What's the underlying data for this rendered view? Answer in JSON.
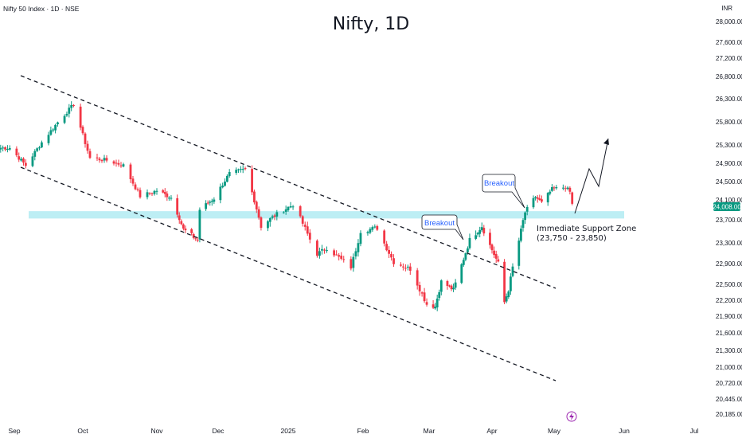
{
  "header": {
    "symbol_line": "Nifty 50 Index · 1D · NSE",
    "currency": "INR"
  },
  "chart_data": {
    "type": "candlestick",
    "title": "Nifty, 1D",
    "y_ticks": [
      28000,
      27600,
      27200,
      26800,
      26300,
      25800,
      25300,
      24900,
      24500,
      24100,
      23700,
      23300,
      22900,
      22500,
      22200,
      21900,
      21600,
      21300,
      21000,
      20720,
      20445,
      20185
    ],
    "y_tick_labels": [
      "28,000.00",
      "27,600.00",
      "27,200.00",
      "26,800.00",
      "26,300.00",
      "25,800.00",
      "25,300.00",
      "24,900.00",
      "24,500.00",
      "24,100.00",
      "23,700.00",
      "23,300.00",
      "22,900.00",
      "22,500.00",
      "22,200.00",
      "21,900.00",
      "21,600.00",
      "21,300.00",
      "21,000.00",
      "20,720.00",
      "20,445.00",
      "20,185.00"
    ],
    "x_labels": [
      "Sep",
      "Oct",
      "Nov",
      "Dec",
      "2025",
      "Feb",
      "Mar",
      "Apr",
      "May",
      "Jun",
      "Jul"
    ],
    "last_price_label": "24,008.00",
    "last_price": 24008,
    "support_zone": {
      "low": 23750,
      "high": 23850,
      "label_line1": "Immediate Support Zone",
      "label_line2": "(23,750 - 23,850)"
    },
    "annotations": [
      "Breakout",
      "Breakout"
    ],
    "anchors": [
      {
        "d": "2024-08-30",
        "c": 25236
      },
      {
        "d": "2024-09-06",
        "c": 24852
      },
      {
        "d": "2024-09-13",
        "c": 25356
      },
      {
        "d": "2024-09-20",
        "c": 25790
      },
      {
        "d": "2024-09-27",
        "c": 26178
      },
      {
        "d": "2024-10-04",
        "c": 25014
      },
      {
        "d": "2024-10-11",
        "c": 24964
      },
      {
        "d": "2024-10-18",
        "c": 24854
      },
      {
        "d": "2024-10-25",
        "c": 24180
      },
      {
        "d": "2024-11-01",
        "c": 24304
      },
      {
        "d": "2024-11-08",
        "c": 24148
      },
      {
        "d": "2024-11-14",
        "c": 23532
      },
      {
        "d": "2024-11-21",
        "c": 23349
      },
      {
        "d": "2024-11-22",
        "c": 23907
      },
      {
        "d": "2024-11-29",
        "c": 24131
      },
      {
        "d": "2024-12-06",
        "c": 24677
      },
      {
        "d": "2024-12-13",
        "c": 24768
      },
      {
        "d": "2024-12-20",
        "c": 23587
      },
      {
        "d": "2024-12-27",
        "c": 23813
      },
      {
        "d": "2025-01-03",
        "c": 24004
      },
      {
        "d": "2025-01-13",
        "c": 23085
      },
      {
        "d": "2025-01-17",
        "c": 23203
      },
      {
        "d": "2025-01-27",
        "c": 22829
      },
      {
        "d": "2025-01-31",
        "c": 23508
      },
      {
        "d": "2025-02-07",
        "c": 23559
      },
      {
        "d": "2025-02-14",
        "c": 22929
      },
      {
        "d": "2025-02-21",
        "c": 22795
      },
      {
        "d": "2025-02-28",
        "c": 22124
      },
      {
        "d": "2025-03-04",
        "c": 22082
      },
      {
        "d": "2025-03-07",
        "c": 22552
      },
      {
        "d": "2025-03-13",
        "c": 22397
      },
      {
        "d": "2025-03-21",
        "c": 23350
      },
      {
        "d": "2025-03-27",
        "c": 23591
      },
      {
        "d": "2025-04-01",
        "c": 23165
      },
      {
        "d": "2025-04-04",
        "c": 22904
      },
      {
        "d": "2025-04-07",
        "c": 22161
      },
      {
        "d": "2025-04-09",
        "c": 22399
      },
      {
        "d": "2025-04-11",
        "c": 22828
      },
      {
        "d": "2025-04-17",
        "c": 23851
      },
      {
        "d": "2025-04-22",
        "c": 24167
      },
      {
        "d": "2025-04-25",
        "c": 24039
      },
      {
        "d": "2025-04-30",
        "c": 24334
      },
      {
        "d": "2025-05-06",
        "c": 24379
      },
      {
        "d": "2025-05-08",
        "c": 24273
      },
      {
        "d": "2025-05-09",
        "c": 24008
      }
    ]
  }
}
